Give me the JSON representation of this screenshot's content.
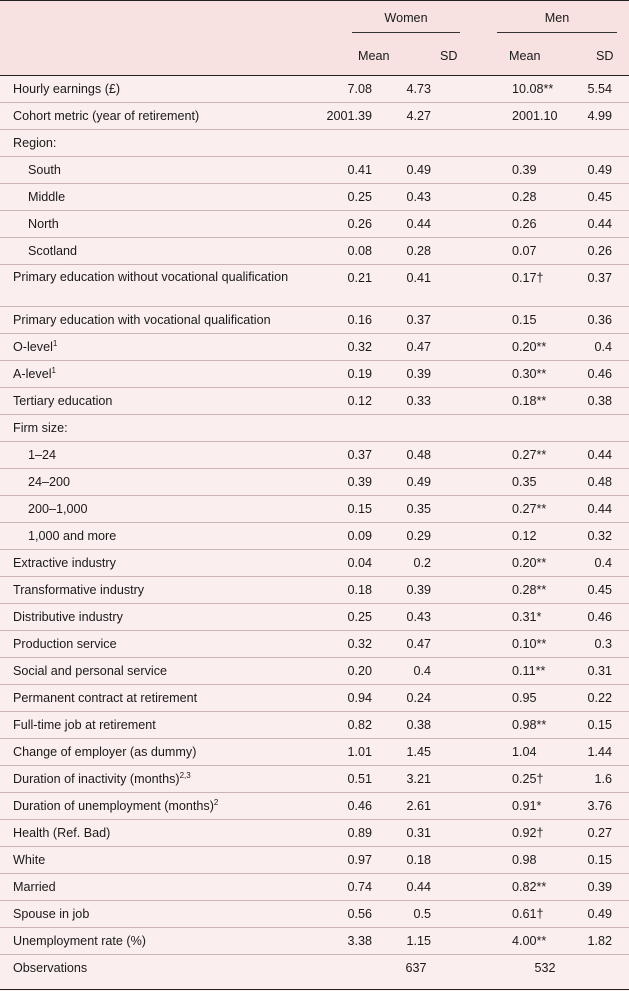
{
  "header": {
    "women_label": "Women",
    "men_label": "Men",
    "women_mean": "Mean",
    "women_sd": "SD",
    "men_mean": "Mean",
    "men_sd": "SD"
  },
  "rows": [
    {
      "label": "Hourly earnings (£)",
      "sup": "",
      "indent": false,
      "wm": "7.08",
      "ws": "4.73",
      "mm": "10.08**",
      "ms": "5.54"
    },
    {
      "label": "Cohort metric (year of retirement)",
      "sup": "",
      "indent": false,
      "wm": "2001.39",
      "ws": "4.27",
      "mm": "2001.10",
      "ms": "4.99"
    },
    {
      "label": "Region:",
      "sup": "",
      "indent": false,
      "wm": "",
      "ws": "",
      "mm": "",
      "ms": ""
    },
    {
      "label": "South",
      "sup": "",
      "indent": true,
      "wm": "0.41",
      "ws": "0.49",
      "mm": "0.39",
      "ms": "0.49"
    },
    {
      "label": "Middle",
      "sup": "",
      "indent": true,
      "wm": "0.25",
      "ws": "0.43",
      "mm": "0.28",
      "ms": "0.45"
    },
    {
      "label": "North",
      "sup": "",
      "indent": true,
      "wm": "0.26",
      "ws": "0.44",
      "mm": "0.26",
      "ms": "0.44"
    },
    {
      "label": "Scotland",
      "sup": "",
      "indent": true,
      "wm": "0.08",
      "ws": "0.28",
      "mm": "0.07",
      "ms": "0.26"
    },
    {
      "label": "Primary education without vocational qualification",
      "sup": "",
      "indent": false,
      "wm": "0.21",
      "ws": "0.41",
      "mm": "0.17†",
      "ms": "0.37",
      "tall": true
    },
    {
      "label": "Primary education with vocational qualification",
      "sup": "",
      "indent": false,
      "wm": "0.16",
      "ws": "0.37",
      "mm": "0.15",
      "ms": "0.36"
    },
    {
      "label": "O-level",
      "sup": "1",
      "indent": false,
      "wm": "0.32",
      "ws": "0.47",
      "mm": "0.20**",
      "ms": "0.4"
    },
    {
      "label": "A-level",
      "sup": "1",
      "indent": false,
      "wm": "0.19",
      "ws": "0.39",
      "mm": "0.30**",
      "ms": "0.46"
    },
    {
      "label": "Tertiary education",
      "sup": "",
      "indent": false,
      "wm": "0.12",
      "ws": "0.33",
      "mm": "0.18**",
      "ms": "0.38"
    },
    {
      "label": "Firm size:",
      "sup": "",
      "indent": false,
      "wm": "",
      "ws": "",
      "mm": "",
      "ms": ""
    },
    {
      "label": "1–24",
      "sup": "",
      "indent": true,
      "wm": "0.37",
      "ws": "0.48",
      "mm": "0.27**",
      "ms": "0.44"
    },
    {
      "label": "24–200",
      "sup": "",
      "indent": true,
      "wm": "0.39",
      "ws": "0.49",
      "mm": "0.35",
      "ms": "0.48"
    },
    {
      "label": "200–1,000",
      "sup": "",
      "indent": true,
      "wm": "0.15",
      "ws": "0.35",
      "mm": "0.27**",
      "ms": "0.44"
    },
    {
      "label": "1,000 and more",
      "sup": "",
      "indent": true,
      "wm": "0.09",
      "ws": "0.29",
      "mm": "0.12",
      "ms": "0.32"
    },
    {
      "label": "Extractive industry",
      "sup": "",
      "indent": false,
      "wm": "0.04",
      "ws": "0.2",
      "mm": "0.20**",
      "ms": "0.4"
    },
    {
      "label": "Transformative industry",
      "sup": "",
      "indent": false,
      "wm": "0.18",
      "ws": "0.39",
      "mm": "0.28**",
      "ms": "0.45"
    },
    {
      "label": "Distributive industry",
      "sup": "",
      "indent": false,
      "wm": "0.25",
      "ws": "0.43",
      "mm": "0.31*",
      "ms": "0.46"
    },
    {
      "label": "Production service",
      "sup": "",
      "indent": false,
      "wm": "0.32",
      "ws": "0.47",
      "mm": "0.10**",
      "ms": "0.3"
    },
    {
      "label": "Social and personal service",
      "sup": "",
      "indent": false,
      "wm": "0.20",
      "ws": "0.4",
      "mm": "0.11**",
      "ms": "0.31"
    },
    {
      "label": "Permanent contract at retirement",
      "sup": "",
      "indent": false,
      "wm": "0.94",
      "ws": "0.24",
      "mm": "0.95",
      "ms": "0.22"
    },
    {
      "label": "Full-time job at retirement",
      "sup": "",
      "indent": false,
      "wm": "0.82",
      "ws": "0.38",
      "mm": "0.98**",
      "ms": "0.15"
    },
    {
      "label": "Change of employer (as dummy)",
      "sup": "",
      "indent": false,
      "wm": "1.01",
      "ws": "1.45",
      "mm": "1.04",
      "ms": "1.44"
    },
    {
      "label": "Duration of inactivity (months)",
      "sup": "2,3",
      "indent": false,
      "wm": "0.51",
      "ws": "3.21",
      "mm": "0.25†",
      "ms": "1.6"
    },
    {
      "label": "Duration of unemployment (months)",
      "sup": "2",
      "indent": false,
      "wm": "0.46",
      "ws": "2.61",
      "mm": "0.91*",
      "ms": "3.76"
    },
    {
      "label": "Health (Ref. Bad)",
      "sup": "",
      "indent": false,
      "wm": "0.89",
      "ws": "0.31",
      "mm": "0.92†",
      "ms": "0.27"
    },
    {
      "label": "White",
      "sup": "",
      "indent": false,
      "wm": "0.97",
      "ws": "0.18",
      "mm": "0.98",
      "ms": "0.15"
    },
    {
      "label": "Married",
      "sup": "",
      "indent": false,
      "wm": "0.74",
      "ws": "0.44",
      "mm": "0.82**",
      "ms": "0.39"
    },
    {
      "label": "Spouse in job",
      "sup": "",
      "indent": false,
      "wm": "0.56",
      "ws": "0.5",
      "mm": "0.61†",
      "ms": "0.49"
    },
    {
      "label": "Unemployment rate (%)",
      "sup": "",
      "indent": false,
      "wm": "3.38",
      "ws": "1.15",
      "mm": "4.00**",
      "ms": "1.82"
    }
  ],
  "observations": {
    "label": "Observations",
    "women": "637",
    "men": "532"
  }
}
